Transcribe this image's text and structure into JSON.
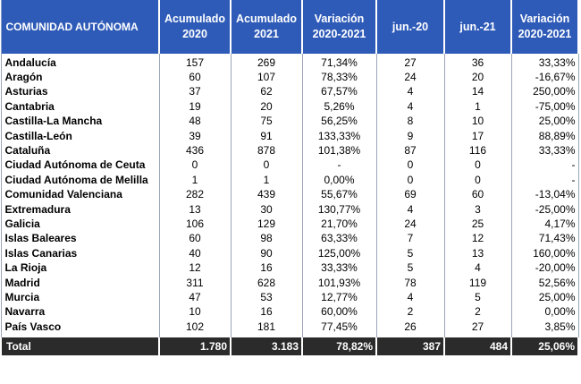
{
  "header": {
    "col0": [
      "COMUNIDAD AUTÓNOMA"
    ],
    "col1": [
      "Acumulado",
      "2020"
    ],
    "col2": [
      "Acumulado",
      "2021"
    ],
    "col3": [
      "Variación",
      "2020-2021"
    ],
    "col4": [
      "jun.-20"
    ],
    "col5": [
      "jun.-21"
    ],
    "col6": [
      "Variación",
      "2020-2021"
    ]
  },
  "rows": [
    {
      "name": "Andalucía",
      "acum2020": "157",
      "acum2021": "269",
      "var_acum": "71,34%",
      "jun20": "27",
      "jun21": "36",
      "var_jun": "33,33%"
    },
    {
      "name": "Aragón",
      "acum2020": "60",
      "acum2021": "107",
      "var_acum": "78,33%",
      "jun20": "24",
      "jun21": "20",
      "var_jun": "-16,67%"
    },
    {
      "name": "Asturias",
      "acum2020": "37",
      "acum2021": "62",
      "var_acum": "67,57%",
      "jun20": "4",
      "jun21": "14",
      "var_jun": "250,00%"
    },
    {
      "name": "Cantabria",
      "acum2020": "19",
      "acum2021": "20",
      "var_acum": "5,26%",
      "jun20": "4",
      "jun21": "1",
      "var_jun": "-75,00%"
    },
    {
      "name": "Castilla-La Mancha",
      "acum2020": "48",
      "acum2021": "75",
      "var_acum": "56,25%",
      "jun20": "8",
      "jun21": "10",
      "var_jun": "25,00%"
    },
    {
      "name": "Castilla-León",
      "acum2020": "39",
      "acum2021": "91",
      "var_acum": "133,33%",
      "jun20": "9",
      "jun21": "17",
      "var_jun": "88,89%"
    },
    {
      "name": "Cataluña",
      "acum2020": "436",
      "acum2021": "878",
      "var_acum": "101,38%",
      "jun20": "87",
      "jun21": "116",
      "var_jun": "33,33%"
    },
    {
      "name": "Ciudad Autónoma de Ceuta",
      "acum2020": "0",
      "acum2021": "0",
      "var_acum": "-",
      "jun20": "0",
      "jun21": "0",
      "var_jun": "-"
    },
    {
      "name": "Ciudad Autónoma de Melilla",
      "acum2020": "1",
      "acum2021": "1",
      "var_acum": "0,00%",
      "jun20": "0",
      "jun21": "0",
      "var_jun": "-"
    },
    {
      "name": "Comunidad Valenciana",
      "acum2020": "282",
      "acum2021": "439",
      "var_acum": "55,67%",
      "jun20": "69",
      "jun21": "60",
      "var_jun": "-13,04%"
    },
    {
      "name": "Extremadura",
      "acum2020": "13",
      "acum2021": "30",
      "var_acum": "130,77%",
      "jun20": "4",
      "jun21": "3",
      "var_jun": "-25,00%"
    },
    {
      "name": "Galicia",
      "acum2020": "106",
      "acum2021": "129",
      "var_acum": "21,70%",
      "jun20": "24",
      "jun21": "25",
      "var_jun": "4,17%"
    },
    {
      "name": "Islas Baleares",
      "acum2020": "60",
      "acum2021": "98",
      "var_acum": "63,33%",
      "jun20": "7",
      "jun21": "12",
      "var_jun": "71,43%"
    },
    {
      "name": "Islas Canarias",
      "acum2020": "40",
      "acum2021": "90",
      "var_acum": "125,00%",
      "jun20": "5",
      "jun21": "13",
      "var_jun": "160,00%"
    },
    {
      "name": "La Rioja",
      "acum2020": "12",
      "acum2021": "16",
      "var_acum": "33,33%",
      "jun20": "5",
      "jun21": "4",
      "var_jun": "-20,00%"
    },
    {
      "name": "Madrid",
      "acum2020": "311",
      "acum2021": "628",
      "var_acum": "101,93%",
      "jun20": "78",
      "jun21": "119",
      "var_jun": "52,56%"
    },
    {
      "name": "Murcia",
      "acum2020": "47",
      "acum2021": "53",
      "var_acum": "12,77%",
      "jun20": "4",
      "jun21": "5",
      "var_jun": "25,00%"
    },
    {
      "name": "Navarra",
      "acum2020": "10",
      "acum2021": "16",
      "var_acum": "60,00%",
      "jun20": "2",
      "jun21": "2",
      "var_jun": "0,00%"
    },
    {
      "name": "País Vasco",
      "acum2020": "102",
      "acum2021": "181",
      "var_acum": "77,45%",
      "jun20": "26",
      "jun21": "27",
      "var_jun": "3,85%"
    }
  ],
  "total": {
    "name": "Total",
    "acum2020": "1.780",
    "acum2021": "3.183",
    "var_acum": "78,82%",
    "jun20": "387",
    "jun21": "484",
    "var_jun": "25,06%"
  },
  "colors": {
    "header_bg": "#2f5bb8",
    "total_bg": "#2b2b2b",
    "header_text": "#ffffff"
  }
}
